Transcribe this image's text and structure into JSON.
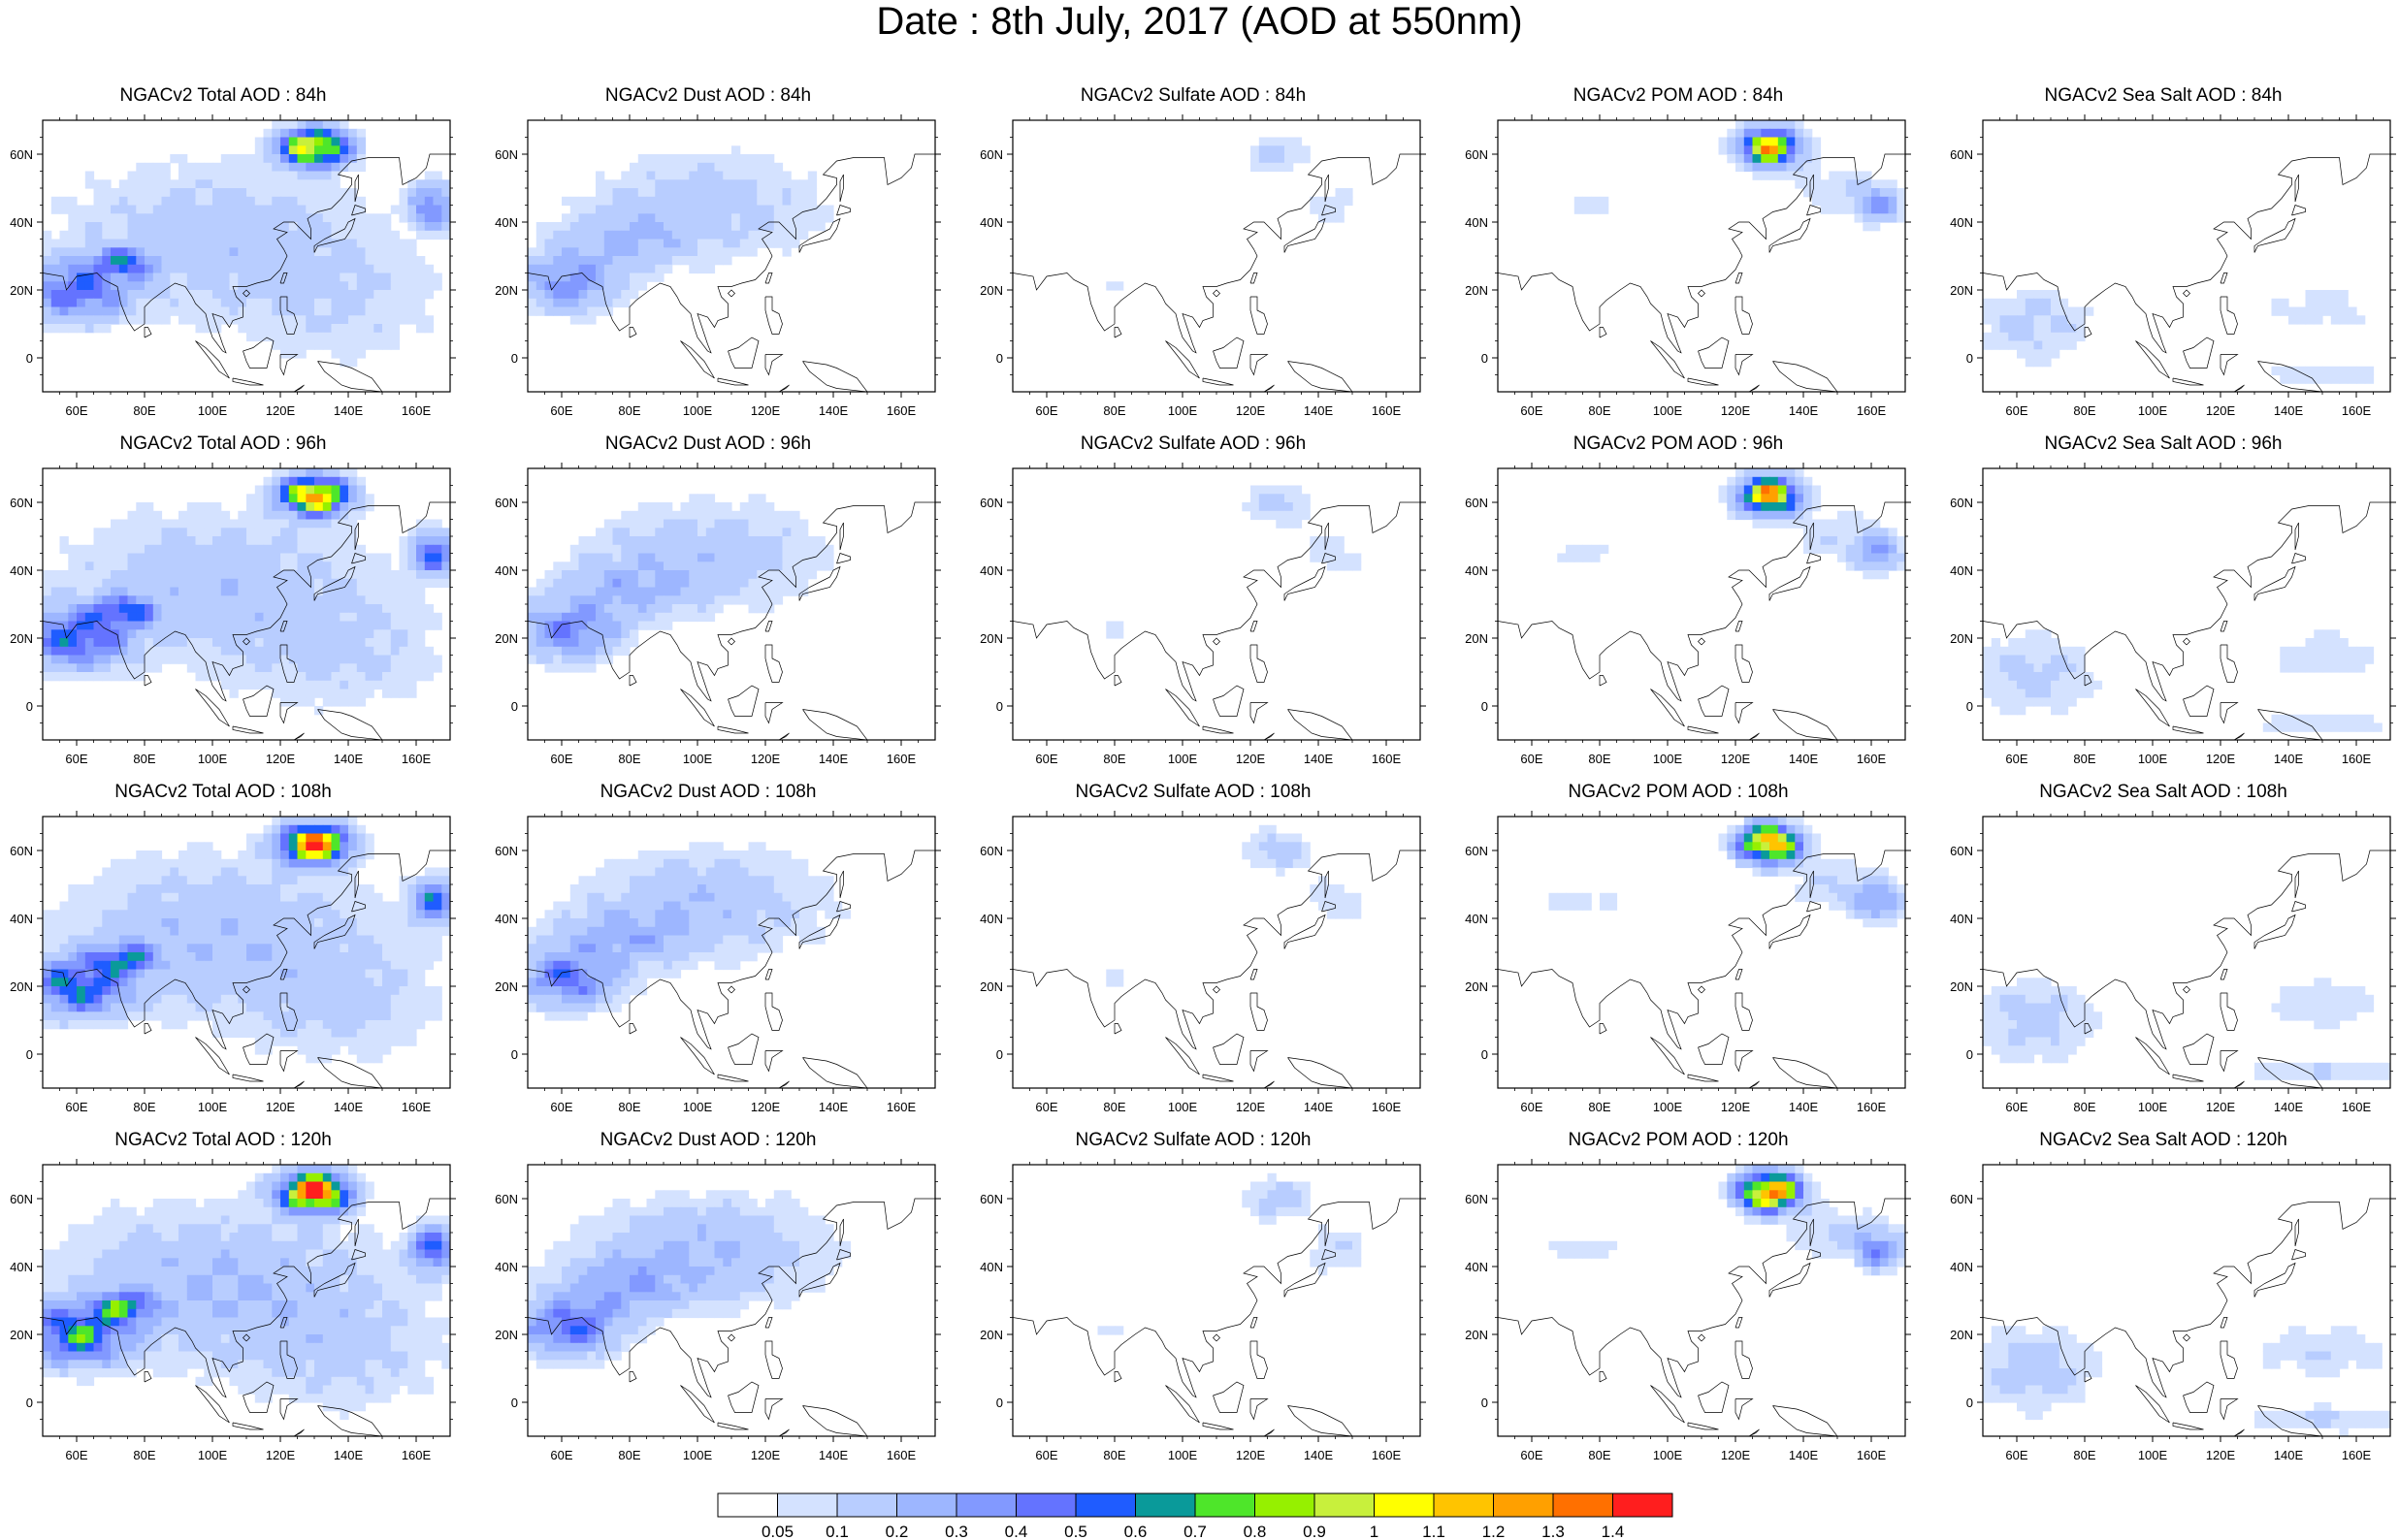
{
  "title": "Date : 8th July, 2017 (AOD at 550nm)",
  "colors": {
    "scale": [
      "#ffffff",
      "#d4e2ff",
      "#b8cdff",
      "#9db6ff",
      "#8299ff",
      "#6473ff",
      "#1f5cff",
      "#0a9a9a",
      "#4ee62a",
      "#96f000",
      "#c8f03c",
      "#ffff00",
      "#ffc400",
      "#ffa000",
      "#ff7000",
      "#ff1e1e"
    ],
    "coastline": "#000000"
  },
  "colorbar": {
    "labels": [
      "0.05",
      "0.1",
      "0.2",
      "0.3",
      "0.4",
      "0.5",
      "0.6",
      "0.7",
      "0.8",
      "0.9",
      "1",
      "1.1",
      "1.2",
      "1.3",
      "1.4"
    ]
  },
  "axes": {
    "lon_labels": [
      "60E",
      "80E",
      "100E",
      "120E",
      "140E",
      "160E"
    ],
    "lat_labels": [
      "60N",
      "40N",
      "20N",
      "0"
    ],
    "lon_range": [
      50,
      170
    ],
    "lat_range": [
      -10,
      70
    ]
  },
  "panels": [
    {
      "id": "total-84",
      "species": "total",
      "row": 0,
      "col": 0,
      "title": "NGACv2 Total AOD : 84h"
    },
    {
      "id": "dust-84",
      "species": "dust",
      "row": 0,
      "col": 1,
      "title": "NGACv2 Dust AOD : 84h"
    },
    {
      "id": "sulfate-84",
      "species": "sulfate",
      "row": 0,
      "col": 2,
      "title": "NGACv2 Sulfate AOD : 84h"
    },
    {
      "id": "pom-84",
      "species": "pom",
      "row": 0,
      "col": 3,
      "title": "NGACv2 POM AOD : 84h"
    },
    {
      "id": "seasalt-84",
      "species": "seasalt",
      "row": 0,
      "col": 4,
      "title": "NGACv2 Sea Salt AOD : 84h"
    },
    {
      "id": "total-96",
      "species": "total",
      "row": 1,
      "col": 0,
      "title": "NGACv2 Total AOD : 96h"
    },
    {
      "id": "dust-96",
      "species": "dust",
      "row": 1,
      "col": 1,
      "title": "NGACv2 Dust AOD : 96h"
    },
    {
      "id": "sulfate-96",
      "species": "sulfate",
      "row": 1,
      "col": 2,
      "title": "NGACv2 Sulfate AOD : 96h"
    },
    {
      "id": "pom-96",
      "species": "pom",
      "row": 1,
      "col": 3,
      "title": "NGACv2 POM AOD : 96h"
    },
    {
      "id": "seasalt-96",
      "species": "seasalt",
      "row": 1,
      "col": 4,
      "title": "NGACv2 Sea Salt AOD : 96h"
    },
    {
      "id": "total-108",
      "species": "total",
      "row": 2,
      "col": 0,
      "title": "NGACv2 Total AOD : 108h"
    },
    {
      "id": "dust-108",
      "species": "dust",
      "row": 2,
      "col": 1,
      "title": "NGACv2 Dust AOD : 108h"
    },
    {
      "id": "sulfate-108",
      "species": "sulfate",
      "row": 2,
      "col": 2,
      "title": "NGACv2 Sulfate AOD : 108h"
    },
    {
      "id": "pom-108",
      "species": "pom",
      "row": 2,
      "col": 3,
      "title": "NGACv2 POM AOD : 108h"
    },
    {
      "id": "seasalt-108",
      "species": "seasalt",
      "row": 2,
      "col": 4,
      "title": "NGACv2 Sea Salt AOD : 108h"
    },
    {
      "id": "total-120",
      "species": "total",
      "row": 3,
      "col": 0,
      "title": "NGACv2 Total AOD : 120h"
    },
    {
      "id": "dust-120",
      "species": "dust",
      "row": 3,
      "col": 1,
      "title": "NGACv2 Dust AOD : 120h"
    },
    {
      "id": "sulfate-120",
      "species": "sulfate",
      "row": 3,
      "col": 2,
      "title": "NGACv2 Sulfate AOD : 120h"
    },
    {
      "id": "pom-120",
      "species": "pom",
      "row": 3,
      "col": 3,
      "title": "NGACv2 POM AOD : 120h"
    },
    {
      "id": "seasalt-120",
      "species": "seasalt",
      "row": 3,
      "col": 4,
      "title": "NGACv2 Sea Salt  AOD : 120h"
    }
  ]
}
